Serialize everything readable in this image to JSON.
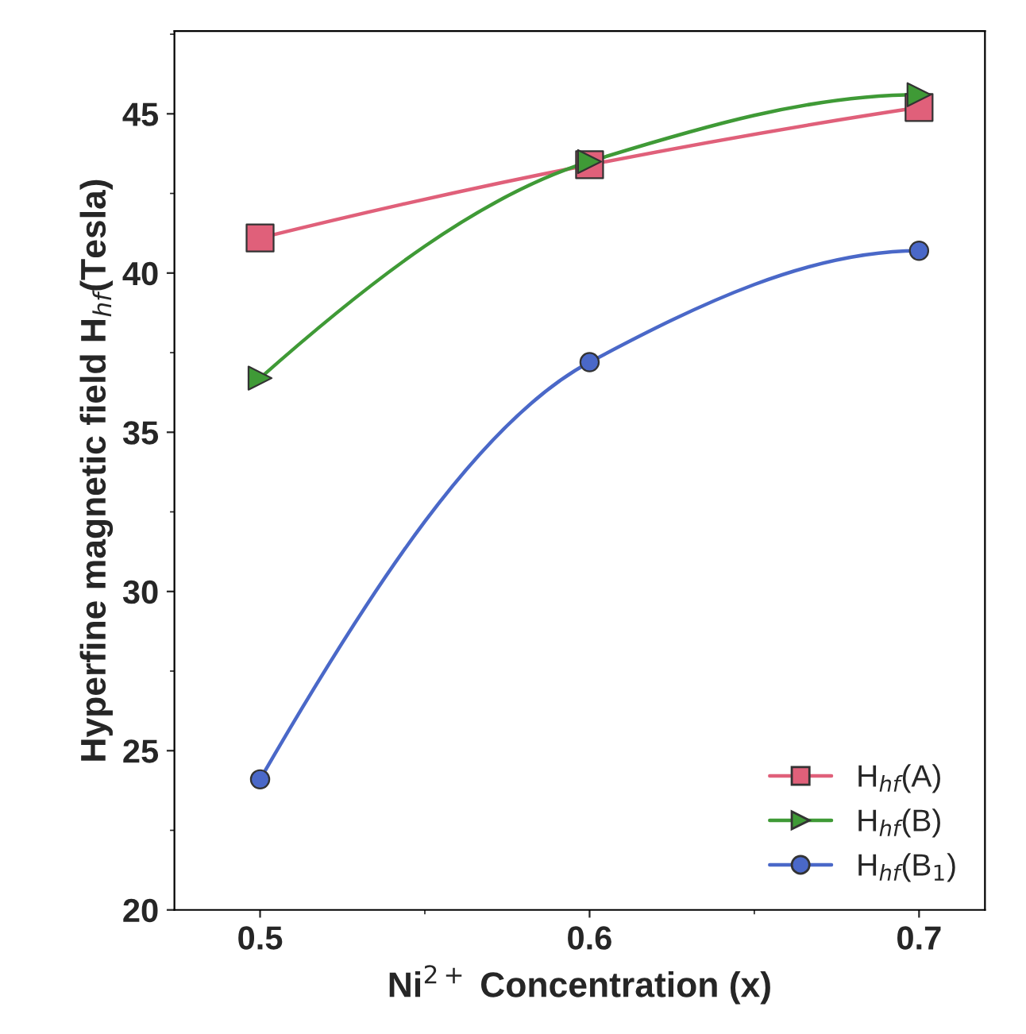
{
  "chart_data": {
    "type": "line",
    "xlabel": "Ni$^{2+}$ Concentration (x)",
    "ylabel": "Hyperfine magnetic field H$_{hf}$(Tesla)",
    "x": [
      0.5,
      0.6,
      0.7
    ],
    "series": [
      {
        "name": "H$_{hf}$(A)",
        "color": "#e0607a",
        "marker": "square",
        "values": [
          41.1,
          43.4,
          45.2
        ]
      },
      {
        "name": "H$_{hf}$(B)",
        "color": "#3f9a36",
        "marker": "triangle",
        "values": [
          36.7,
          43.5,
          45.6
        ]
      },
      {
        "name": "H$_{hf}$(B$_{1}$)",
        "color": "#4a68c8",
        "marker": "circle",
        "values": [
          24.1,
          37.2,
          40.7
        ]
      }
    ],
    "xlim": [
      0.474,
      0.72
    ],
    "xticks": [
      0.5,
      0.6,
      0.7
    ],
    "ylim": [
      20,
      47.6
    ],
    "yticks": [
      20,
      25,
      30,
      35,
      40,
      45
    ],
    "legend": "lower right",
    "grid": false,
    "line_style": "solid"
  }
}
